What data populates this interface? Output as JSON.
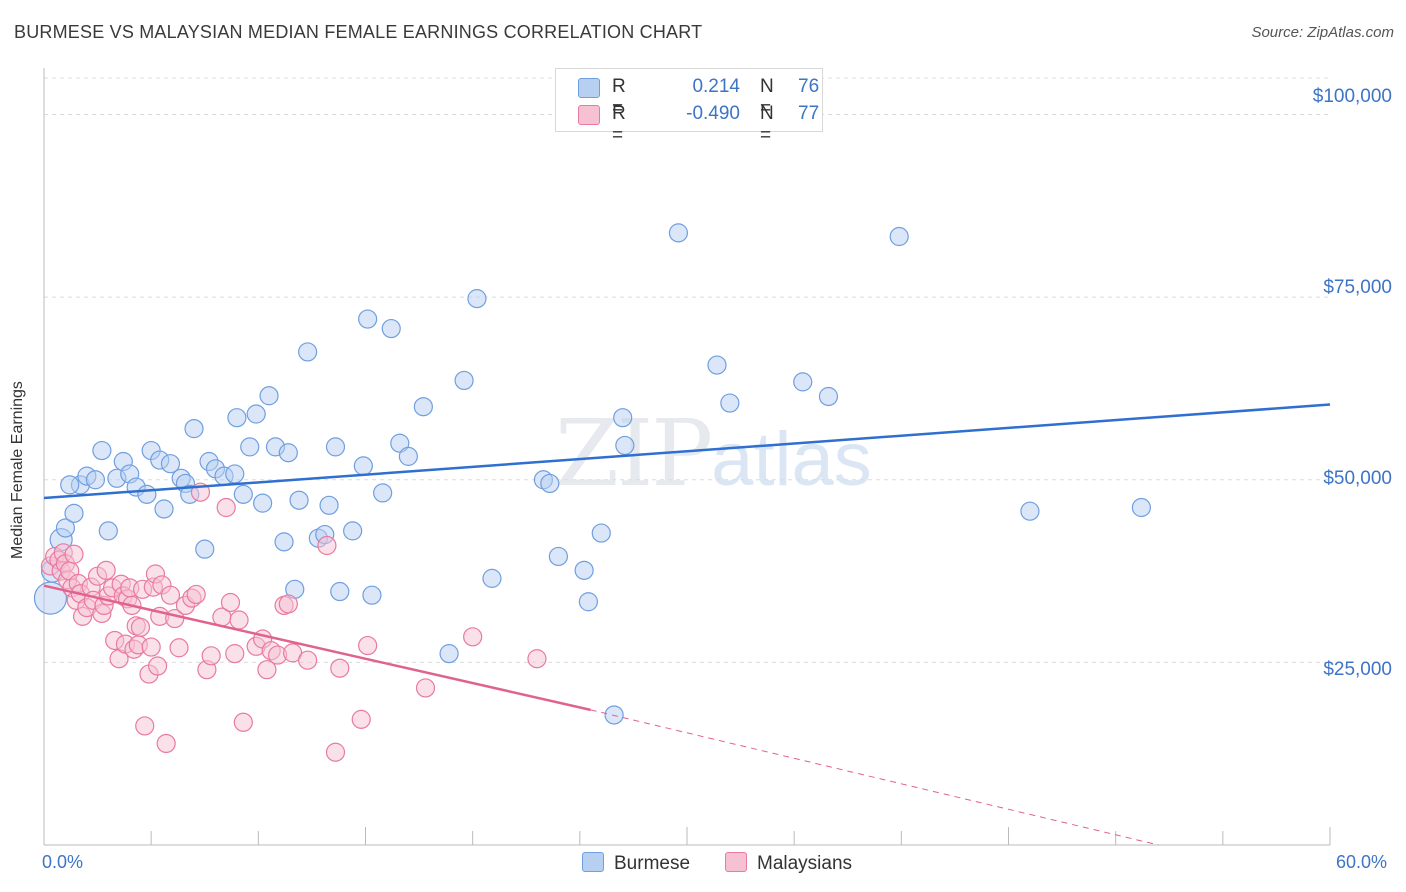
{
  "title": "BURMESE VS MALAYSIAN MEDIAN FEMALE EARNINGS CORRELATION CHART",
  "source": "Source: ZipAtlas.com",
  "watermark": {
    "zip": "ZIP",
    "atlas": "atlas"
  },
  "colors": {
    "burmese": "#6f9fe0",
    "burmese_fill": "#b7d0f2",
    "malaysian": "#e97aa0",
    "malaysian_fill": "#f6c1d3",
    "blue_line": "#2f6fcf",
    "pink_line": "#e0628f",
    "tick_text": "#3d74c6"
  },
  "legend": [
    {
      "r_label": "R =",
      "r_value": "0.214",
      "n_label": "N =",
      "n_value": "76"
    },
    {
      "r_label": "R =",
      "r_value": "-0.490",
      "n_label": "N =",
      "n_value": "77"
    }
  ],
  "chart_data": {
    "type": "scatter",
    "title": "BURMESE VS MALAYSIAN MEDIAN FEMALE EARNINGS CORRELATION CHART",
    "xlabel": "",
    "ylabel": "Median Female Earnings",
    "xlim": [
      0,
      60
    ],
    "ylim": [
      0,
      105000
    ],
    "x_tick_labels": [
      "0.0%",
      "60.0%"
    ],
    "y_ticks": [
      25000,
      50000,
      75000,
      100000
    ],
    "y_tick_labels": [
      "$25,000",
      "$50,000",
      "$75,000",
      "$100,000"
    ],
    "grid": true,
    "legend_position": "top-center",
    "series": [
      {
        "name": "Burmese",
        "trend": {
          "x": [
            0,
            60
          ],
          "y": [
            47500,
            60300
          ]
        },
        "points": [
          [
            0.3,
            33800
          ],
          [
            0.4,
            37500
          ],
          [
            0.8,
            41800
          ],
          [
            1.0,
            43400
          ],
          [
            1.4,
            45400
          ],
          [
            1.7,
            49300
          ],
          [
            2.0,
            50500
          ],
          [
            2.4,
            50000
          ],
          [
            3.0,
            43000
          ],
          [
            2.7,
            54000
          ],
          [
            3.4,
            50200
          ],
          [
            3.7,
            52500
          ],
          [
            4.0,
            50800
          ],
          [
            4.3,
            49000
          ],
          [
            4.8,
            48000
          ],
          [
            5.0,
            54000
          ],
          [
            5.4,
            52700
          ],
          [
            5.6,
            46000
          ],
          [
            5.9,
            52200
          ],
          [
            6.4,
            50200
          ],
          [
            6.6,
            49500
          ],
          [
            6.8,
            48000
          ],
          [
            7.0,
            57000
          ],
          [
            7.5,
            40500
          ],
          [
            7.7,
            52500
          ],
          [
            8.0,
            51500
          ],
          [
            8.4,
            50500
          ],
          [
            8.9,
            50800
          ],
          [
            9.0,
            58500
          ],
          [
            9.3,
            48000
          ],
          [
            9.6,
            54500
          ],
          [
            9.9,
            59000
          ],
          [
            10.2,
            46800
          ],
          [
            10.5,
            61500
          ],
          [
            10.8,
            54500
          ],
          [
            11.2,
            41500
          ],
          [
            11.4,
            53700
          ],
          [
            11.7,
            35000
          ],
          [
            11.9,
            47200
          ],
          [
            12.3,
            67500
          ],
          [
            12.8,
            42000
          ],
          [
            13.1,
            42500
          ],
          [
            13.3,
            46500
          ],
          [
            13.6,
            54500
          ],
          [
            13.8,
            34700
          ],
          [
            14.4,
            43000
          ],
          [
            14.9,
            51900
          ],
          [
            15.1,
            72000
          ],
          [
            15.3,
            34200
          ],
          [
            15.8,
            48200
          ],
          [
            16.2,
            70700
          ],
          [
            16.6,
            55000
          ],
          [
            17.0,
            53200
          ],
          [
            17.7,
            60000
          ],
          [
            18.9,
            26200
          ],
          [
            19.6,
            63600
          ],
          [
            20.2,
            74800
          ],
          [
            20.9,
            36500
          ],
          [
            23.3,
            50000
          ],
          [
            23.6,
            49500
          ],
          [
            24.0,
            39500
          ],
          [
            25.2,
            37600
          ],
          [
            25.4,
            33300
          ],
          [
            26.0,
            42700
          ],
          [
            26.6,
            17800
          ],
          [
            27.0,
            58500
          ],
          [
            27.1,
            54700
          ],
          [
            29.6,
            83800
          ],
          [
            31.4,
            65700
          ],
          [
            32.0,
            60500
          ],
          [
            35.4,
            63400
          ],
          [
            36.6,
            61400
          ],
          [
            39.9,
            83300
          ],
          [
            46.0,
            45700
          ],
          [
            51.2,
            46200
          ],
          [
            1.2,
            49300
          ]
        ]
      },
      {
        "name": "Malaysians",
        "trend": {
          "x": [
            0,
            25.5
          ],
          "y": [
            35500,
            18500
          ]
        },
        "trend_extension": {
          "x": [
            25.5,
            52
          ],
          "y": [
            18500,
            0
          ]
        },
        "points": [
          [
            0.3,
            38200
          ],
          [
            0.5,
            39500
          ],
          [
            0.7,
            39000
          ],
          [
            0.8,
            37500
          ],
          [
            0.9,
            40000
          ],
          [
            1.0,
            38500
          ],
          [
            1.1,
            36300
          ],
          [
            1.2,
            37500
          ],
          [
            1.3,
            35200
          ],
          [
            1.4,
            39800
          ],
          [
            1.5,
            33500
          ],
          [
            1.6,
            35800
          ],
          [
            1.7,
            34400
          ],
          [
            1.8,
            31300
          ],
          [
            2.0,
            32500
          ],
          [
            2.2,
            35300
          ],
          [
            2.3,
            33500
          ],
          [
            2.5,
            36800
          ],
          [
            2.7,
            31700
          ],
          [
            2.8,
            32800
          ],
          [
            2.9,
            37600
          ],
          [
            3.0,
            34100
          ],
          [
            3.2,
            35200
          ],
          [
            3.3,
            28000
          ],
          [
            3.5,
            25500
          ],
          [
            3.6,
            35700
          ],
          [
            3.7,
            34100
          ],
          [
            3.8,
            27500
          ],
          [
            3.9,
            33700
          ],
          [
            4.0,
            35200
          ],
          [
            4.1,
            32800
          ],
          [
            4.2,
            26800
          ],
          [
            4.3,
            30000
          ],
          [
            4.4,
            27400
          ],
          [
            4.5,
            29800
          ],
          [
            4.6,
            35000
          ],
          [
            4.7,
            16300
          ],
          [
            4.9,
            23400
          ],
          [
            5.0,
            27100
          ],
          [
            5.1,
            35300
          ],
          [
            5.2,
            37100
          ],
          [
            5.3,
            24500
          ],
          [
            5.4,
            31300
          ],
          [
            5.5,
            35600
          ],
          [
            5.7,
            13900
          ],
          [
            5.9,
            34200
          ],
          [
            6.1,
            31000
          ],
          [
            6.3,
            27000
          ],
          [
            6.6,
            32800
          ],
          [
            6.9,
            33800
          ],
          [
            7.1,
            34300
          ],
          [
            7.3,
            48300
          ],
          [
            7.6,
            24000
          ],
          [
            7.8,
            25900
          ],
          [
            8.3,
            31200
          ],
          [
            8.5,
            46200
          ],
          [
            8.7,
            33200
          ],
          [
            8.9,
            26200
          ],
          [
            9.1,
            30800
          ],
          [
            9.3,
            16800
          ],
          [
            9.9,
            27200
          ],
          [
            10.2,
            28200
          ],
          [
            10.4,
            24000
          ],
          [
            10.6,
            26600
          ],
          [
            10.9,
            26000
          ],
          [
            11.2,
            32800
          ],
          [
            11.6,
            26300
          ],
          [
            12.3,
            25300
          ],
          [
            13.2,
            41000
          ],
          [
            13.6,
            12700
          ],
          [
            14.8,
            17200
          ],
          [
            15.1,
            27300
          ],
          [
            17.8,
            21500
          ],
          [
            20.0,
            28500
          ],
          [
            23.0,
            25500
          ],
          [
            13.8,
            24200
          ],
          [
            11.4,
            33000
          ]
        ]
      }
    ]
  }
}
